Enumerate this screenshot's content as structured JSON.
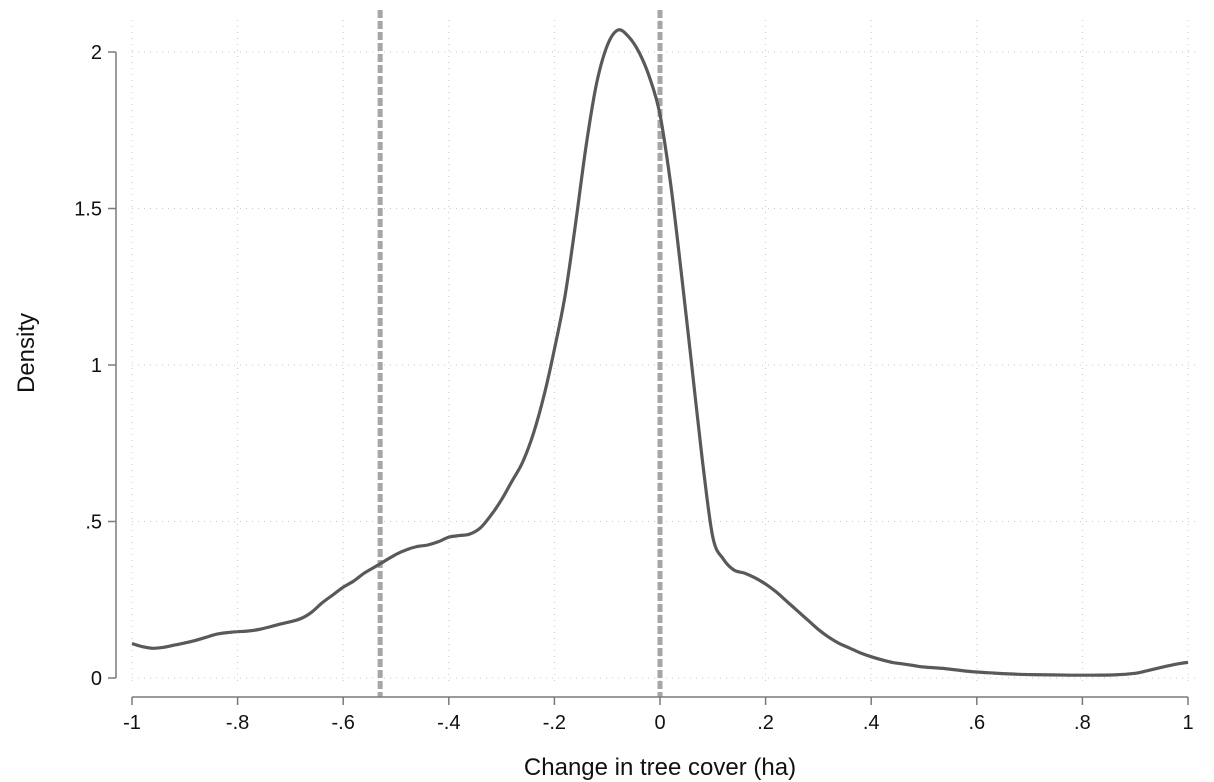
{
  "chart_data": {
    "type": "line",
    "title": "",
    "xlabel": "Change in tree cover (ha)",
    "ylabel": "Density",
    "xlim": [
      -1,
      1
    ],
    "ylim": [
      0,
      2.1
    ],
    "x_ticks": [
      -1,
      -0.8,
      -0.6,
      -0.4,
      -0.2,
      0,
      0.2,
      0.4,
      0.6,
      0.8,
      1
    ],
    "x_tick_labels": [
      "-1",
      "-.8",
      "-.6",
      "-.4",
      "-.2",
      "0",
      ".2",
      ".4",
      ".6",
      ".8",
      "1"
    ],
    "y_ticks": [
      0,
      0.5,
      1,
      1.5,
      2
    ],
    "y_tick_labels": [
      "0",
      ".5",
      "1",
      "1.5",
      "2"
    ],
    "grid": true,
    "legend": "none",
    "reference_lines_x": [
      -0.53,
      0
    ],
    "colors": {
      "line": "#595959",
      "reference": "#a6a6a6",
      "grid": "#c8c8c8",
      "axis": "#7a7a7a"
    },
    "series": [
      {
        "x": [
          -1,
          -0.98,
          -0.96,
          -0.94,
          -0.92,
          -0.9,
          -0.88,
          -0.86,
          -0.84,
          -0.82,
          -0.8,
          -0.78,
          -0.76,
          -0.74,
          -0.72,
          -0.7,
          -0.68,
          -0.66,
          -0.64,
          -0.62,
          -0.6,
          -0.58,
          -0.56,
          -0.54,
          -0.52,
          -0.5,
          -0.48,
          -0.46,
          -0.44,
          -0.42,
          -0.4,
          -0.38,
          -0.36,
          -0.34,
          -0.32,
          -0.3,
          -0.28,
          -0.26,
          -0.24,
          -0.22,
          -0.2,
          -0.18,
          -0.16,
          -0.14,
          -0.12,
          -0.1,
          -0.08,
          -0.06,
          -0.04,
          -0.02,
          0,
          0.02,
          0.04,
          0.06,
          0.08,
          0.1,
          0.12,
          0.14,
          0.16,
          0.18,
          0.2,
          0.22,
          0.24,
          0.26,
          0.28,
          0.3,
          0.32,
          0.34,
          0.36,
          0.38,
          0.4,
          0.42,
          0.44,
          0.46,
          0.48,
          0.5,
          0.54,
          0.58,
          0.62,
          0.66,
          0.7,
          0.74,
          0.78,
          0.82,
          0.86,
          0.9,
          0.92,
          0.94,
          0.96,
          0.98,
          1
        ],
        "y": [
          0.11,
          0.1,
          0.095,
          0.098,
          0.105,
          0.112,
          0.12,
          0.13,
          0.14,
          0.145,
          0.148,
          0.15,
          0.155,
          0.163,
          0.172,
          0.18,
          0.19,
          0.21,
          0.24,
          0.265,
          0.29,
          0.31,
          0.335,
          0.355,
          0.375,
          0.395,
          0.41,
          0.42,
          0.425,
          0.435,
          0.45,
          0.455,
          0.46,
          0.48,
          0.52,
          0.57,
          0.63,
          0.69,
          0.78,
          0.9,
          1.05,
          1.22,
          1.45,
          1.7,
          1.9,
          2.02,
          2.07,
          2.05,
          2.0,
          1.92,
          1.8,
          1.58,
          1.3,
          1.0,
          0.7,
          0.45,
          0.38,
          0.345,
          0.335,
          0.32,
          0.3,
          0.275,
          0.245,
          0.215,
          0.185,
          0.155,
          0.13,
          0.11,
          0.095,
          0.08,
          0.068,
          0.058,
          0.05,
          0.045,
          0.04,
          0.035,
          0.03,
          0.022,
          0.017,
          0.013,
          0.011,
          0.01,
          0.009,
          0.009,
          0.01,
          0.015,
          0.022,
          0.03,
          0.038,
          0.045,
          0.05
        ]
      }
    ]
  }
}
